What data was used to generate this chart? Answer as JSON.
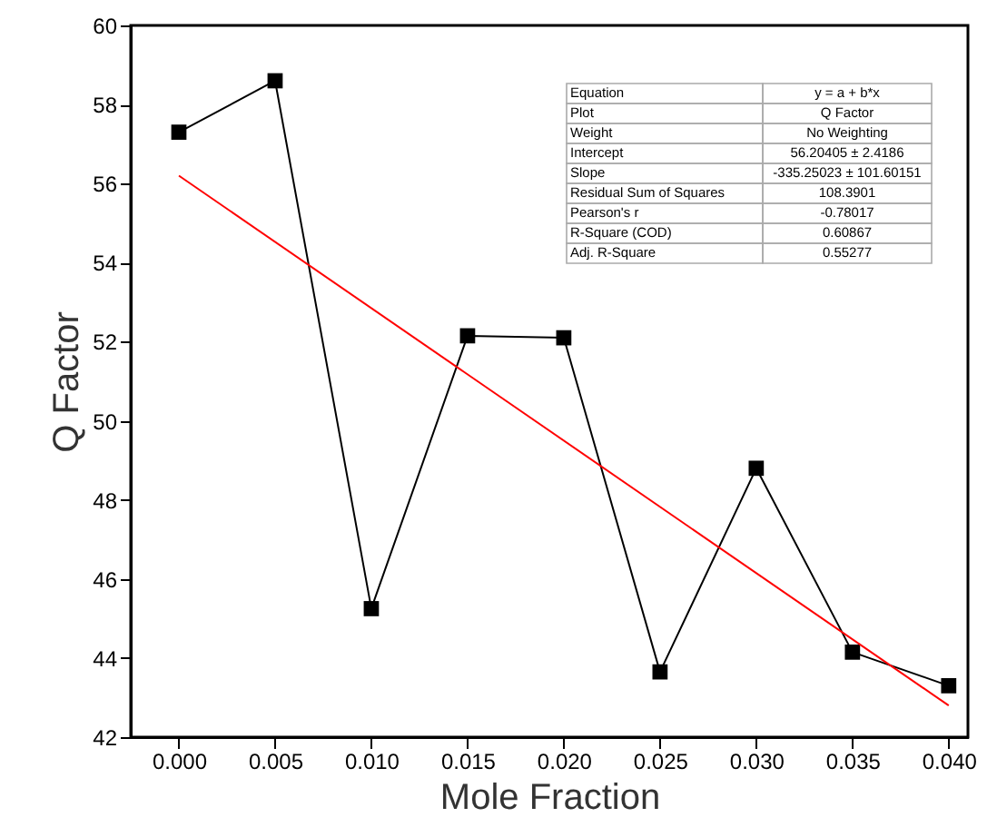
{
  "chart_data": {
    "type": "line",
    "xlabel": "Mole Fraction",
    "ylabel": "Q Factor",
    "x": [
      0.0,
      0.005,
      0.01,
      0.015,
      0.02,
      0.025,
      0.03,
      0.035,
      0.04
    ],
    "series": [
      {
        "color": "#000000",
        "marker": "square",
        "values": [
          57.3,
          58.6,
          45.25,
          52.15,
          52.1,
          43.65,
          48.8,
          44.15,
          43.3
        ]
      },
      {
        "color": "#ff0000",
        "marker": "none",
        "x": [
          0.0,
          0.04
        ],
        "values": [
          56.2,
          42.8
        ]
      }
    ],
    "xlim": [
      -0.0025,
      0.041
    ],
    "ylim": [
      42,
      60
    ],
    "xticks": [
      {
        "value": 0.0,
        "label": "0.000"
      },
      {
        "value": 0.005,
        "label": "0.005"
      },
      {
        "value": 0.01,
        "label": "0.010"
      },
      {
        "value": 0.015,
        "label": "0.015"
      },
      {
        "value": 0.02,
        "label": "0.020"
      },
      {
        "value": 0.025,
        "label": "0.025"
      },
      {
        "value": 0.03,
        "label": "0.030"
      },
      {
        "value": 0.035,
        "label": "0.035"
      },
      {
        "value": 0.04,
        "label": "0.040"
      }
    ],
    "yticks": [
      42,
      44,
      46,
      48,
      50,
      52,
      54,
      56,
      58,
      60
    ],
    "grid": false,
    "annotations": [
      "Equation",
      "y = a + b*x",
      "Plot",
      "Q Factor",
      "Weight",
      "No Weighting",
      "Intercept",
      "56.20405 ± 2.4186",
      "Slope",
      "-335.25023 ± 101.60151",
      "Residual Sum of Squares",
      "108.3901",
      "Pearson's r",
      "-0.78017",
      "R-Square (COD)",
      "0.60867",
      "Adj. R-Square",
      "0.55277"
    ]
  }
}
